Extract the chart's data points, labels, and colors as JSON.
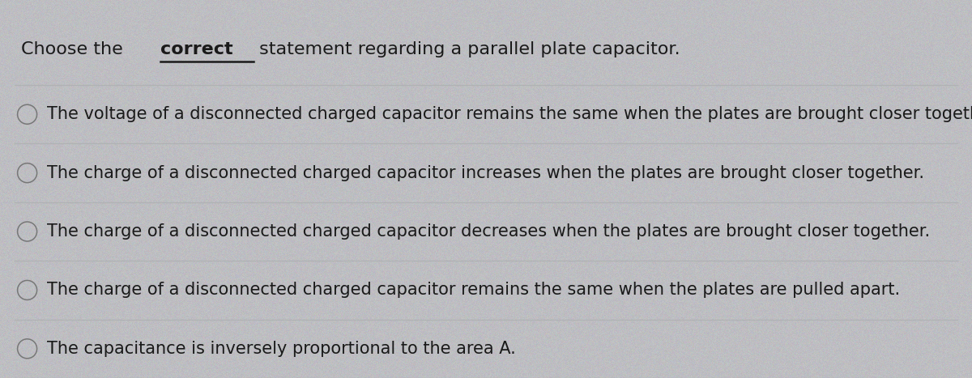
{
  "title_prefix": "Choose the ",
  "title_bold": "correct",
  "title_suffix": " statement regarding a parallel plate capacitor.",
  "options": [
    "The voltage of a disconnected charged capacitor remains the same when the plates are brought closer together.",
    "The charge of a disconnected charged capacitor increases when the plates are brought closer together.",
    "The charge of a disconnected charged capacitor decreases when the plates are brought closer together.",
    "The charge of a disconnected charged capacitor remains the same when the plates are pulled apart.",
    "The capacitance is inversely proportional to the area A."
  ],
  "background_color": "#cccecf",
  "row_bg_color": "#d4d6d8",
  "text_color": "#1a1a1a",
  "line_color": "#b0b2b4",
  "font_size_title": 16,
  "font_size_options": 15,
  "figwidth": 12.0,
  "figheight": 4.67
}
